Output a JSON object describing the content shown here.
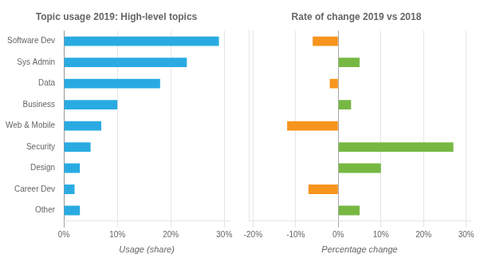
{
  "chart_data": [
    {
      "type": "bar",
      "orientation": "horizontal",
      "title": "Topic usage 2019: High-level topics",
      "xlabel": "Usage (share)",
      "categories": [
        "Software Dev",
        "Sys Admin",
        "Data",
        "Business",
        "Web & Mobile",
        "Security",
        "Design",
        "Career Dev",
        "Other"
      ],
      "values": [
        0.29,
        0.23,
        0.18,
        0.1,
        0.07,
        0.05,
        0.03,
        0.02,
        0.03
      ],
      "color": "#29abe2",
      "xlim": [
        0,
        0.31
      ],
      "xticks": [
        {
          "value": 0,
          "label": "0%"
        },
        {
          "value": 0.1,
          "label": "10%"
        },
        {
          "value": 0.2,
          "label": "20%"
        },
        {
          "value": 0.3,
          "label": "30%"
        }
      ],
      "grid": true
    },
    {
      "type": "bar",
      "orientation": "horizontal",
      "title": "Rate of change 2019 vs 2018",
      "xlabel": "Percentage change",
      "categories": [
        "Software Dev",
        "Sys Admin",
        "Data",
        "Business",
        "Web & Mobile",
        "Security",
        "Design",
        "Career Dev",
        "Other"
      ],
      "values": [
        -0.06,
        0.05,
        -0.02,
        0.03,
        -0.12,
        0.27,
        0.1,
        -0.07,
        0.05
      ],
      "colors": [
        "#f7941d",
        "#77b843",
        "#f7941d",
        "#77b843",
        "#f7941d",
        "#77b843",
        "#77b843",
        "#f7941d",
        "#77b843"
      ],
      "xlim": [
        -0.21,
        0.31
      ],
      "xticks": [
        {
          "value": -0.2,
          "label": "-20%"
        },
        {
          "value": -0.1,
          "label": "-10%"
        },
        {
          "value": 0,
          "label": "0%"
        },
        {
          "value": 0.1,
          "label": "10%"
        },
        {
          "value": 0.2,
          "label": "20%"
        },
        {
          "value": 0.3,
          "label": "30%"
        }
      ],
      "grid": true,
      "tick_labels": "x"
    }
  ]
}
